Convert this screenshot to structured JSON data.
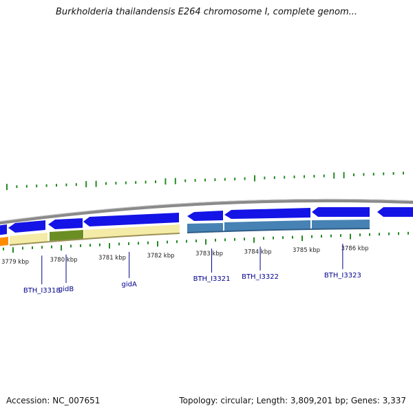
{
  "title": "Burkholderia thailandensis E264 chromosome I, complete genom...",
  "footer": {
    "accession": "Accession: NC_007651",
    "summary": "Topology: circular; Length: 3,809,201 bp; Genes: 3,337"
  },
  "colors": {
    "backbone": "#8a8a8a",
    "cds_arrow": "#1414e6",
    "cds_arrow_light": "#5a6cf0",
    "gene_pale": "#f4eba6",
    "gene_green": "#6b8e23",
    "gene_orange": "#ff8c00",
    "gene_steel": "#4682b4",
    "tick_green": "#228b22",
    "label_navy": "#00008b"
  },
  "scale": {
    "ticks": [
      {
        "pos": 3779,
        "label": "3779 kbp"
      },
      {
        "pos": 3780,
        "label": "3780 kbp"
      },
      {
        "pos": 3781,
        "label": "3781 kbp"
      },
      {
        "pos": 3782,
        "label": "3782 kbp"
      },
      {
        "pos": 3783,
        "label": "3783 kbp"
      },
      {
        "pos": 3784,
        "label": "3784 kbp"
      },
      {
        "pos": 3785,
        "label": "3785 kbp"
      },
      {
        "pos": 3786,
        "label": "3786 kbp"
      }
    ]
  },
  "genes": [
    {
      "name": "BTH_I3318",
      "pos": 3779.55
    },
    {
      "name": "gidB",
      "pos": 3780.05
    },
    {
      "name": "gidA",
      "pos": 3781.35
    },
    {
      "name": "BTH_I3321",
      "pos": 3783.05
    },
    {
      "name": "BTH_I3322",
      "pos": 3784.05
    },
    {
      "name": "BTH_I3323",
      "pos": 3785.75
    }
  ]
}
